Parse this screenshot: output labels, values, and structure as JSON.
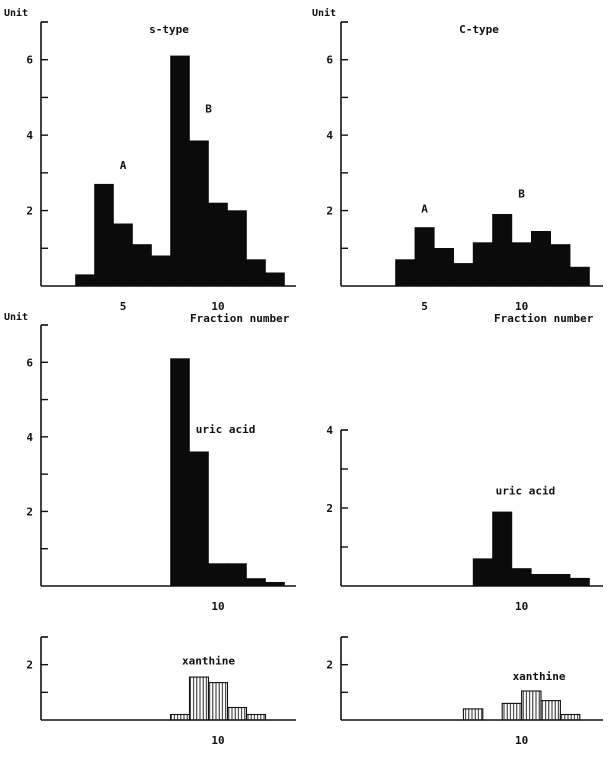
{
  "chart_data": [
    {
      "id": "s_type",
      "type": "bar",
      "title": "s-type",
      "ylabel": "Unit",
      "xlabel": "Fraction number",
      "ylim": [
        0,
        7
      ],
      "xlim": [
        1,
        14
      ],
      "yticks": [
        0,
        1,
        2,
        3,
        4,
        5,
        6,
        7
      ],
      "ytick_labels": [
        {
          "value": 2,
          "text": "2"
        },
        {
          "value": 4,
          "text": "4"
        },
        {
          "value": 6,
          "text": "6"
        }
      ],
      "xtick_labels": [
        {
          "value": 5,
          "text": "5"
        },
        {
          "value": 10,
          "text": "10"
        }
      ],
      "fill": "solid",
      "bars": [
        {
          "x": 3,
          "value": 0.3
        },
        {
          "x": 4,
          "value": 2.7
        },
        {
          "x": 5,
          "value": 1.65
        },
        {
          "x": 6,
          "value": 1.1
        },
        {
          "x": 7,
          "value": 0.8
        },
        {
          "x": 8,
          "value": 6.1
        },
        {
          "x": 9,
          "value": 3.85
        },
        {
          "x": 10,
          "value": 2.2
        },
        {
          "x": 11,
          "value": 2.0
        },
        {
          "x": 12,
          "value": 0.7
        },
        {
          "x": 13,
          "value": 0.35
        }
      ],
      "annotations": [
        {
          "text": "A",
          "x": 5,
          "y": 3.1
        },
        {
          "text": "B",
          "x": 9.5,
          "y": 4.6
        }
      ]
    },
    {
      "id": "c_type",
      "type": "bar",
      "title": "C-type",
      "ylabel": "Unit",
      "xlabel": "Fraction number",
      "ylim": [
        0,
        7
      ],
      "xlim": [
        1,
        14
      ],
      "yticks": [
        0,
        1,
        2,
        3,
        4,
        5,
        6,
        7
      ],
      "ytick_labels": [
        {
          "value": 2,
          "text": "2"
        },
        {
          "value": 4,
          "text": "4"
        },
        {
          "value": 6,
          "text": "6"
        }
      ],
      "xtick_labels": [
        {
          "value": 5,
          "text": "5"
        },
        {
          "value": 10,
          "text": "10"
        }
      ],
      "fill": "solid",
      "bars": [
        {
          "x": 4,
          "value": 0.7
        },
        {
          "x": 5,
          "value": 1.55
        },
        {
          "x": 6,
          "value": 1.0
        },
        {
          "x": 7,
          "value": 0.6
        },
        {
          "x": 8,
          "value": 1.15
        },
        {
          "x": 9,
          "value": 1.9
        },
        {
          "x": 10,
          "value": 1.15
        },
        {
          "x": 11,
          "value": 1.45
        },
        {
          "x": 12,
          "value": 1.1
        },
        {
          "x": 13,
          "value": 0.5
        }
      ],
      "annotations": [
        {
          "text": "A",
          "x": 5,
          "y": 1.95
        },
        {
          "text": "B",
          "x": 10,
          "y": 2.35
        }
      ]
    },
    {
      "id": "s_uric",
      "type": "bar",
      "title": "",
      "ylabel": "Unit",
      "xlabel": "",
      "ylim": [
        0,
        7
      ],
      "xlim": [
        1,
        14
      ],
      "yticks": [
        0,
        1,
        2,
        3,
        4,
        5,
        6,
        7
      ],
      "ytick_labels": [
        {
          "value": 2,
          "text": "2"
        },
        {
          "value": 4,
          "text": "4"
        },
        {
          "value": 6,
          "text": "6"
        }
      ],
      "xtick_labels": [
        {
          "value": 10,
          "text": "10"
        }
      ],
      "fill": "solid",
      "bars": [
        {
          "x": 8,
          "value": 6.1
        },
        {
          "x": 9,
          "value": 3.6
        },
        {
          "x": 10,
          "value": 0.6
        },
        {
          "x": 11,
          "value": 0.6
        },
        {
          "x": 12,
          "value": 0.2
        },
        {
          "x": 13,
          "value": 0.1
        }
      ],
      "annotations": [
        {
          "text": "uric acid",
          "x": 10.4,
          "y": 4.1
        }
      ]
    },
    {
      "id": "c_uric",
      "type": "bar",
      "title": "",
      "ylabel": "",
      "xlabel": "",
      "ylim": [
        0,
        4
      ],
      "xlim": [
        1,
        14
      ],
      "yticks": [
        0,
        1,
        2,
        3,
        4
      ],
      "ytick_labels": [
        {
          "value": 2,
          "text": "2"
        },
        {
          "value": 4,
          "text": "4"
        }
      ],
      "xtick_labels": [
        {
          "value": 10,
          "text": "10"
        }
      ],
      "fill": "solid",
      "bars": [
        {
          "x": 8,
          "value": 0.7
        },
        {
          "x": 9,
          "value": 1.9
        },
        {
          "x": 10,
          "value": 0.45
        },
        {
          "x": 11,
          "value": 0.3
        },
        {
          "x": 12,
          "value": 0.3
        },
        {
          "x": 13,
          "value": 0.2
        }
      ],
      "annotations": [
        {
          "text": "uric acid",
          "x": 10.2,
          "y": 2.35
        }
      ]
    },
    {
      "id": "s_xanthine",
      "type": "bar",
      "title": "",
      "ylabel": "",
      "xlabel": "",
      "ylim": [
        0,
        3
      ],
      "xlim": [
        1,
        14
      ],
      "yticks": [
        0,
        1,
        2,
        3
      ],
      "ytick_labels": [
        {
          "value": 2,
          "text": "2"
        }
      ],
      "xtick_labels": [
        {
          "value": 10,
          "text": "10"
        }
      ],
      "fill": "hatched",
      "bars": [
        {
          "x": 8,
          "value": 0.2
        },
        {
          "x": 9,
          "value": 1.55
        },
        {
          "x": 10,
          "value": 1.35
        },
        {
          "x": 11,
          "value": 0.45
        },
        {
          "x": 12,
          "value": 0.2
        }
      ],
      "annotations": [
        {
          "text": "xanthine",
          "x": 9.5,
          "y": 2.0
        }
      ]
    },
    {
      "id": "c_xanthine",
      "type": "bar",
      "title": "",
      "ylabel": "",
      "xlabel": "",
      "ylim": [
        0,
        3
      ],
      "xlim": [
        1,
        14
      ],
      "yticks": [
        0,
        1,
        2,
        3
      ],
      "ytick_labels": [
        {
          "value": 2,
          "text": "2"
        }
      ],
      "xtick_labels": [
        {
          "value": 10,
          "text": "10"
        }
      ],
      "fill": "hatched",
      "bars": [
        {
          "x": 7.5,
          "value": 0.4
        },
        {
          "x": 9.5,
          "value": 0.6
        },
        {
          "x": 10.5,
          "value": 1.05
        },
        {
          "x": 11.5,
          "value": 0.7
        },
        {
          "x": 12.5,
          "value": 0.2
        }
      ],
      "annotations": [
        {
          "text": "xanthine",
          "x": 10.9,
          "y": 1.45
        }
      ]
    }
  ]
}
